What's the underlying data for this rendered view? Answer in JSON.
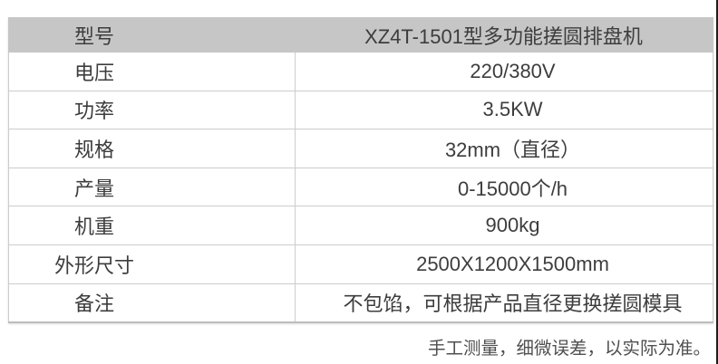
{
  "table": {
    "header": {
      "label": "型号",
      "value": "XZ4T-1501型多功能搓圆排盘机"
    },
    "rows": [
      {
        "label": "电压",
        "value": "220/380V"
      },
      {
        "label": "功率",
        "value": "3.5KW"
      },
      {
        "label": "规格",
        "value": "32mm（直径）"
      },
      {
        "label": "产量",
        "value": "0-15000个/h"
      },
      {
        "label": "机重",
        "value": "900kg"
      },
      {
        "label": "外形尺寸",
        "value": "2500X1200X1500mm"
      },
      {
        "label": "备注",
        "value": "不包馅，可根据产品直径更换搓圆模具"
      }
    ]
  },
  "footer": {
    "note": "手工测量，细微误差，以实际为准。"
  },
  "colors": {
    "header_bg": "#c6c6c6",
    "border": "#cccccc",
    "text": "#3d3d3d",
    "footer_text": "#4f4f4f",
    "edge_strip": "#1e1e1e"
  }
}
